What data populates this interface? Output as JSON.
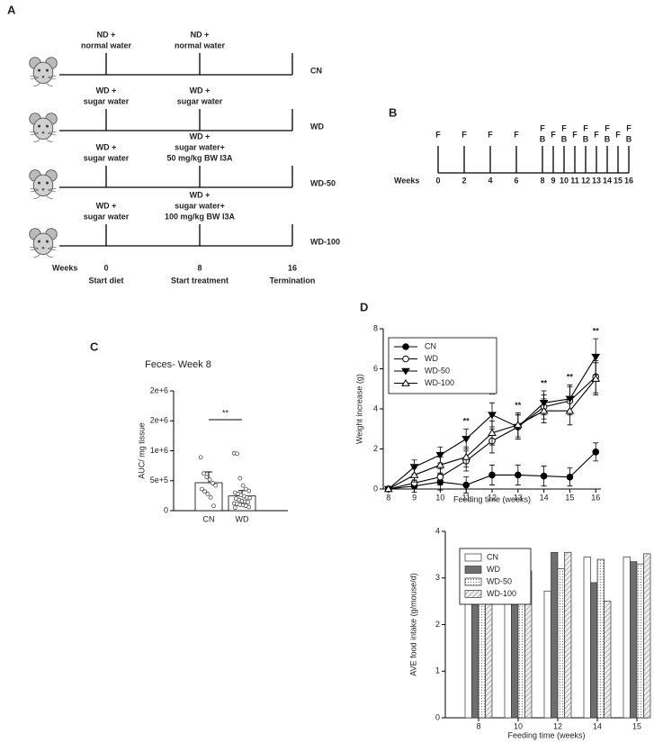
{
  "panel_labels": [
    "A",
    "B",
    "C",
    "D"
  ],
  "panel_a": {
    "rows": [
      {
        "group": "CN",
        "before": [
          "ND +",
          "normal water"
        ],
        "after": [
          "ND +",
          "normal water"
        ]
      },
      {
        "group": "WD",
        "before": [
          "WD +",
          "sugar water"
        ],
        "after": [
          "WD +",
          "sugar water"
        ]
      },
      {
        "group": "WD-50",
        "before": [
          "WD +",
          "sugar water"
        ],
        "after": [
          "WD +",
          "sugar water+",
          "50 mg/kg BW I3A"
        ]
      },
      {
        "group": "WD-100",
        "before": [
          "WD +",
          "sugar water"
        ],
        "after": [
          "WD +",
          "sugar water+",
          "100 mg/kg BW I3A"
        ]
      }
    ],
    "axis_label": "Weeks",
    "milestones": [
      {
        "week": "0",
        "caption": "Start diet"
      },
      {
        "week": "8",
        "caption": "Start treatment"
      },
      {
        "week": "16",
        "caption": "Termination"
      }
    ]
  },
  "panel_b": {
    "axis_label": "Weeks",
    "timepoints": [
      {
        "week": "0",
        "events": [
          "F"
        ]
      },
      {
        "week": "2",
        "events": [
          "F"
        ]
      },
      {
        "week": "4",
        "events": [
          "F"
        ]
      },
      {
        "week": "6",
        "events": [
          "F"
        ]
      },
      {
        "week": "8",
        "events": [
          "F",
          "B"
        ]
      },
      {
        "week": "9",
        "events": [
          "F"
        ]
      },
      {
        "week": "10",
        "events": [
          "F",
          "B"
        ]
      },
      {
        "week": "11",
        "events": [
          "F"
        ]
      },
      {
        "week": "12",
        "events": [
          "F",
          "B"
        ]
      },
      {
        "week": "13",
        "events": [
          "F"
        ]
      },
      {
        "week": "14",
        "events": [
          "F",
          "B"
        ]
      },
      {
        "week": "15",
        "events": [
          "F"
        ]
      },
      {
        "week": "16",
        "events": [
          "F",
          "B"
        ]
      }
    ]
  },
  "chart_data": [
    {
      "type": "bar",
      "title": "Feces- Week 8",
      "y_label": "AUC/ mg tissue",
      "categories": [
        "CN",
        "WD"
      ],
      "values": [
        466000,
        245000
      ],
      "errors": [
        180000,
        90000
      ],
      "color": "#ffffff",
      "points": [
        [
          890000,
          620000,
          560000,
          520000,
          460000,
          420000,
          360000,
          320000,
          280000,
          220000,
          80000
        ],
        [
          960000,
          950000,
          540000,
          420000,
          360000,
          330000,
          300000,
          280000,
          260000,
          240000,
          220000,
          210000,
          200000,
          180000,
          160000,
          150000,
          140000,
          120000,
          110000,
          100000,
          90000,
          80000,
          60000,
          50000
        ]
      ],
      "significance": "**",
      "ylim": [
        0,
        2000000
      ],
      "yticks": [
        0,
        {
          "value": 500000,
          "label": "5e+5"
        },
        {
          "value": 1000000,
          "label": "1e+6"
        },
        {
          "value": 1500000,
          "label": "2e+6"
        },
        {
          "value": 2000000,
          "label": "2e+6"
        }
      ]
    },
    {
      "type": "line",
      "x_label": "Feeding time (weeks)",
      "y_label": "Weight increase (g)",
      "x": [
        8,
        9,
        10,
        11,
        12,
        13,
        14,
        15,
        16
      ],
      "series": [
        {
          "name": "CN",
          "color": "#000000",
          "marker": "circle-filled",
          "values": [
            0,
            0.15,
            0.35,
            0.2,
            0.7,
            0.7,
            0.65,
            0.6,
            1.85
          ],
          "errors": [
            0,
            0.3,
            0.4,
            0.4,
            0.5,
            0.5,
            0.5,
            0.45,
            0.45
          ]
        },
        {
          "name": "WD",
          "color": "#000000",
          "marker": "circle-open",
          "values": [
            0,
            0.3,
            0.6,
            1.4,
            2.4,
            3.1,
            4.1,
            4.4,
            5.6
          ],
          "errors": [
            0,
            0.3,
            0.4,
            0.5,
            0.6,
            0.6,
            0.6,
            0.7,
            0.8
          ]
        },
        {
          "name": "WD-50",
          "color": "#000000",
          "marker": "triangle-down-filled",
          "values": [
            0,
            1.1,
            1.7,
            2.5,
            3.7,
            3.1,
            4.3,
            4.5,
            6.6
          ],
          "errors": [
            0,
            0.35,
            0.4,
            0.5,
            0.6,
            0.6,
            0.6,
            0.7,
            0.9
          ]
        },
        {
          "name": "WD-100",
          "color": "#000000",
          "marker": "triangle-up-open",
          "values": [
            0,
            0.7,
            1.2,
            1.6,
            2.8,
            3.2,
            3.9,
            3.9,
            5.5
          ],
          "errors": [
            0,
            0.35,
            0.4,
            0.5,
            0.6,
            0.6,
            0.6,
            0.7,
            0.8
          ]
        }
      ],
      "annotations": [
        {
          "x": 11,
          "text": "**"
        },
        {
          "x": 12,
          "text": "**"
        },
        {
          "x": 13,
          "text": "**"
        },
        {
          "x": 14,
          "text": "**"
        },
        {
          "x": 15,
          "text": "**"
        },
        {
          "x": 16,
          "text": "**"
        }
      ],
      "legend": "top-left",
      "xlim": [
        7.8,
        16.2
      ],
      "xticks": [
        8,
        9,
        10,
        11,
        12,
        13,
        14,
        15,
        16
      ],
      "ylim": [
        0,
        8
      ],
      "yticks": [
        0,
        2,
        4,
        6,
        8
      ]
    },
    {
      "type": "bar",
      "x_label": "Feeding time (weeks)",
      "y_label": "AVE food intake (g/mouse/d)",
      "categories": [
        "8",
        "10",
        "12",
        "14",
        "15"
      ],
      "series": [
        {
          "name": "CN",
          "color": "#ffffff",
          "values": [
            3.05,
            2.75,
            2.72,
            3.45,
            3.45
          ]
        },
        {
          "name": "WD",
          "color": "#6e6e6e",
          "values": [
            2.55,
            2.8,
            3.55,
            2.9,
            3.35
          ]
        },
        {
          "name": "WD-50",
          "color": "dots",
          "values": [
            2.85,
            3.0,
            3.2,
            3.4,
            3.3
          ]
        },
        {
          "name": "WD-100",
          "color": "hatch",
          "values": [
            2.9,
            3.15,
            3.55,
            2.5,
            3.52
          ]
        }
      ],
      "legend": "top-left",
      "ylim": [
        0,
        4
      ],
      "yticks": [
        0,
        1,
        2,
        3,
        4
      ]
    }
  ]
}
